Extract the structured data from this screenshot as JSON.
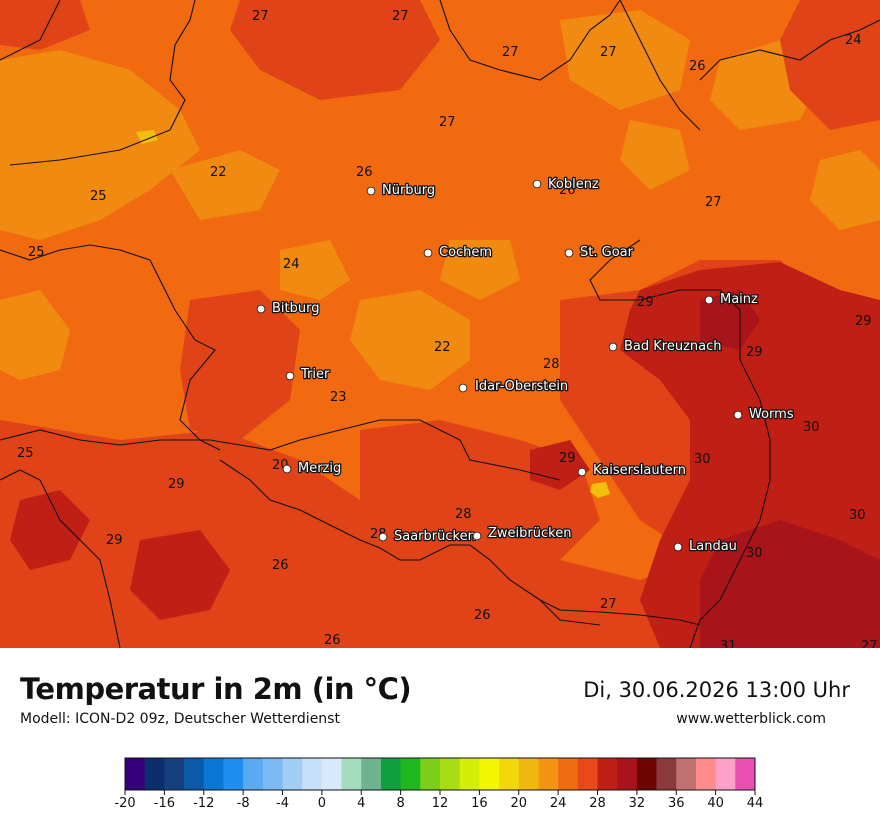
{
  "header": {
    "title": "Temperatur in 2m (in °C)",
    "model": "Modell: ICON-D2 09z, Deutscher Wetterdienst",
    "datetime": "Di, 30.06.2026 13:00 Uhr",
    "website": "www.wetterblick.com"
  },
  "cities": [
    {
      "name": "Nürburg"
    },
    {
      "name": "Koblenz"
    },
    {
      "name": "Cochem"
    },
    {
      "name": "St. Goar"
    },
    {
      "name": "Bitburg"
    },
    {
      "name": "Mainz"
    },
    {
      "name": "Bad Kreuznach"
    },
    {
      "name": "Trier"
    },
    {
      "name": "Idar-Oberstein"
    },
    {
      "name": "Worms"
    },
    {
      "name": "Merzig"
    },
    {
      "name": "Kaiserslautern"
    },
    {
      "name": "Saarbrücken"
    },
    {
      "name": "Zweibrücken"
    },
    {
      "name": "Landau"
    }
  ],
  "temperature_labels": [
    "27",
    "27",
    "27",
    "27",
    "24",
    "26",
    "27",
    "26",
    "22",
    "26",
    "25",
    "27",
    "25",
    "24",
    "29",
    "29",
    "22",
    "28",
    "29",
    "23",
    "25",
    "30",
    "20",
    "29",
    "30",
    "29",
    "28",
    "29",
    "30",
    "28",
    "26",
    "30",
    "26",
    "27",
    "26",
    "31",
    "27"
  ],
  "colorscale": {
    "unit": "°C",
    "tick_labels": [
      "-20",
      "-16",
      "-12",
      "-8",
      "-4",
      "0",
      "4",
      "8",
      "12",
      "16",
      "20",
      "24",
      "28",
      "32",
      "36",
      "40",
      "44"
    ],
    "colors": [
      "#35007a",
      "#0b2f6e",
      "#163f7e",
      "#0b5aa9",
      "#0a76d6",
      "#1f8ef0",
      "#5aaaf2",
      "#7bbaf4",
      "#a2cdf6",
      "#c6e0fa",
      "#d8e9fb",
      "#a5dcc0",
      "#6fb48f",
      "#10a040",
      "#1fb81f",
      "#7ccf1a",
      "#a8dc15",
      "#d4ee07",
      "#f4f500",
      "#f2d80a",
      "#f0b80e",
      "#f39412",
      "#ef6c10",
      "#e8481a",
      "#c01f15",
      "#a8141a",
      "#6e0505",
      "#8a3a3a",
      "#c07070",
      "#ff8c8c",
      "#ffa0c8",
      "#e84fb0"
    ]
  },
  "map_colors": {
    "t22": "#f08a10",
    "t24": "#f26a10",
    "t28": "#e04318",
    "t30": "#c01f15",
    "t31": "#a8141a",
    "t32": "#f2c00a"
  }
}
